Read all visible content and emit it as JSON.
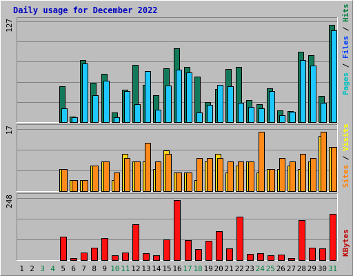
{
  "colors": {
    "background": "#c0c0c0",
    "plot": "#bdbdbd",
    "title": "#0000c0",
    "hits": "#008040",
    "files": "#0040ff",
    "pages": "#00c0c0",
    "visits": "#ffff00",
    "sites": "#ff8000",
    "kbytes": "#c00000",
    "bar_hits": "#127a5a",
    "bar_files": "#1ec8ff",
    "bar_sites": "#ff8a1a",
    "bar_visits": "#ffd21a",
    "bar_kbytes": "#ff1010",
    "weekend_day": "#008040",
    "weekday_day": "#000000"
  },
  "chart_data": {
    "type": "bar",
    "title": "Daily usage for December 2022",
    "categories": [
      "1",
      "2",
      "3",
      "4",
      "5",
      "6",
      "7",
      "8",
      "9",
      "10",
      "11",
      "12",
      "13",
      "14",
      "15",
      "16",
      "17",
      "18",
      "19",
      "20",
      "21",
      "22",
      "23",
      "24",
      "25",
      "26",
      "27",
      "28",
      "29",
      "30",
      "31"
    ],
    "weekend_days": [
      "3",
      "4",
      "10",
      "11",
      "17",
      "18",
      "24",
      "25",
      "31"
    ],
    "panels": [
      {
        "max_label": "127",
        "ylim": [
          0,
          127
        ],
        "grid": true,
        "legend": [
          {
            "text": "Pages",
            "color_key": "pages"
          },
          {
            "text": " / ",
            "color_key": "weekday_day"
          },
          {
            "text": "Files",
            "color_key": "files"
          },
          {
            "text": " / ",
            "color_key": "weekday_day"
          },
          {
            "text": "Hits",
            "color_key": "hits"
          }
        ],
        "series": [
          {
            "name": "Hits",
            "color_key": "bar_hits",
            "values": [
              0,
              0,
              0,
              0,
              45,
              7,
              78,
              50,
              61,
              12,
              41,
              72,
              47,
              34,
              68,
              93,
              70,
              57,
              25,
              42,
              67,
              70,
              28,
              23,
              43,
              15,
              14,
              89,
              84,
              33,
              123
            ]
          },
          {
            "name": "Files",
            "color_key": "bar_files",
            "values": [
              0,
              0,
              0,
              0,
              17,
              6,
              74,
              34,
              52,
              6,
              39,
              23,
              64,
              16,
              46,
              66,
              63,
              12,
              22,
              47,
              45,
              24,
              19,
              17,
              39,
              9,
              13,
              78,
              71,
              24,
              116
            ]
          }
        ]
      },
      {
        "max_label": "17",
        "ylim": [
          0,
          17
        ],
        "grid": true,
        "legend": [
          {
            "text": "Sites",
            "color_key": "sites"
          },
          {
            "text": " / ",
            "color_key": "weekday_day"
          },
          {
            "text": "Visits",
            "color_key": "visits"
          }
        ],
        "series": [
          {
            "name": "Visits",
            "color_key": "bar_visits",
            "values": [
              0,
              0,
              0,
              0,
              6,
              3,
              3,
              7,
              8,
              3,
              10,
              8,
              8,
              6,
              11,
              5,
              5,
              3,
              8,
              10,
              5,
              7,
              8,
              5,
              6,
              6,
              7,
              6,
              8,
              15,
              12
            ]
          },
          {
            "name": "Sites",
            "color_key": "bar_sites",
            "values": [
              0,
              0,
              0,
              0,
              6,
              3,
              3,
              7,
              8,
              5,
              9,
              8,
              13,
              8,
              10,
              5,
              5,
              9,
              9,
              9,
              8,
              8,
              8,
              16,
              6,
              9,
              8,
              10,
              9,
              16,
              12
            ]
          }
        ]
      },
      {
        "max_label": "248",
        "ylim": [
          0,
          248
        ],
        "grid": true,
        "legend": [
          {
            "text": "KBytes",
            "color_key": "kbytes"
          }
        ],
        "series": [
          {
            "name": "KBytes",
            "color_key": "bar_kbytes",
            "values": [
              0,
              0,
              0,
              0,
              92,
              8,
              31,
              48,
              86,
              20,
              31,
              141,
              26,
              20,
              82,
              238,
              80,
              44,
              76,
              115,
              46,
              172,
              24,
              28,
              19,
              21,
              9,
              157,
              48,
              46,
              183
            ]
          }
        ]
      }
    ]
  }
}
